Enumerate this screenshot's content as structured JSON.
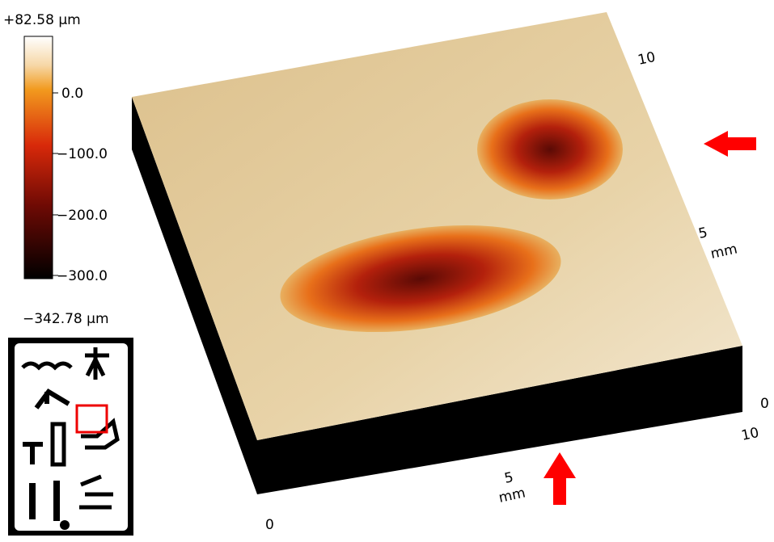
{
  "colorbar": {
    "max_label": "+82.58 µm",
    "ticks": [
      "0.0",
      "−100.0",
      "−200.0",
      "−300.0"
    ],
    "min_label": "−342.78 µm"
  },
  "x_axis": {
    "start": "0",
    "mid": "5",
    "unit": "mm",
    "end": "10"
  },
  "y_axis": {
    "start": "0",
    "mid": "5",
    "unit": "mm",
    "end": "10"
  }
}
